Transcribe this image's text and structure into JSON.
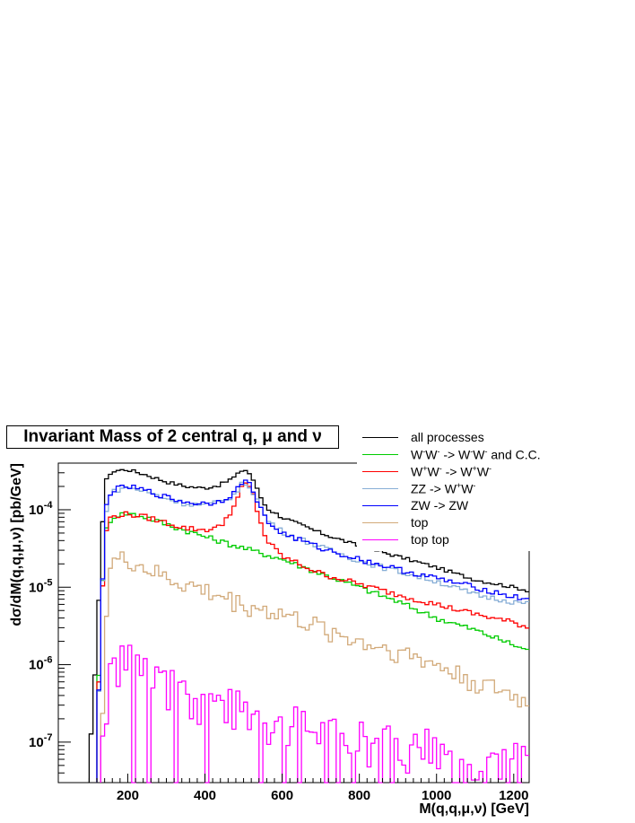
{
  "chart_data": {
    "type": "line",
    "title": "Invariant Mass of 2 central q, μ and ν",
    "xlabel": "M(q,q,μ,ν) [GeV]",
    "ylabel": "dσ/dM(q,q,μ,ν) [pb/GeV]",
    "xlim": [
      20,
      1240
    ],
    "ylim": [
      3e-08,
      0.0004
    ],
    "yscale": "log",
    "x_ticks": [
      200,
      400,
      600,
      800,
      1000,
      1200
    ],
    "x_tick_labels": [
      "200",
      "400",
      "600",
      "800",
      "1000",
      "1200"
    ],
    "y_ticks": [
      1e-07,
      1e-06,
      1e-05,
      0.0001
    ],
    "y_tick_labels": [
      {
        "mantissa": "10",
        "exponent": "-7"
      },
      {
        "mantissa": "10",
        "exponent": "-6"
      },
      {
        "mantissa": "10",
        "exponent": "-5"
      },
      {
        "mantissa": "10",
        "exponent": "-4"
      }
    ],
    "grid": false,
    "legend_position": "top-right",
    "bin_width": 10,
    "series": [
      {
        "name": "all processes",
        "label_html": "all processes",
        "color": "#000000",
        "points": [
          [
            100,
            6e-08
          ],
          [
            110,
            2.5e-07
          ],
          [
            120,
            2e-06
          ],
          [
            130,
            2.5e-05
          ],
          [
            140,
            0.0002
          ],
          [
            150,
            0.00029
          ],
          [
            170,
            0.00032
          ],
          [
            200,
            0.00033
          ],
          [
            250,
            0.00028
          ],
          [
            300,
            0.00023
          ],
          [
            350,
            0.0002
          ],
          [
            400,
            0.00019
          ],
          [
            440,
            0.00021
          ],
          [
            480,
            0.00027
          ],
          [
            500,
            0.00034
          ],
          [
            520,
            0.00028
          ],
          [
            540,
            0.00016
          ],
          [
            560,
            0.000105
          ],
          [
            600,
            8e-05
          ],
          [
            700,
            5e-05
          ],
          [
            800,
            3.4e-05
          ],
          [
            900,
            2.5e-05
          ],
          [
            1000,
            1.8e-05
          ],
          [
            1100,
            1.25e-05
          ],
          [
            1200,
            1e-05
          ],
          [
            1240,
            9e-06
          ]
        ]
      },
      {
        "name": "W-W- -> W-W- and C.C.",
        "label_html": "W<sup>-</sup>W<sup>-</sup> -&gt; W<sup>-</sup>W<sup>-</sup> and C.C.",
        "color": "#00cc00",
        "points": [
          [
            120,
            2e-07
          ],
          [
            130,
            3e-06
          ],
          [
            140,
            4.5e-05
          ],
          [
            150,
            7e-05
          ],
          [
            170,
            8.5e-05
          ],
          [
            200,
            9e-05
          ],
          [
            250,
            8e-05
          ],
          [
            300,
            6.5e-05
          ],
          [
            400,
            4.5e-05
          ],
          [
            500,
            3.2e-05
          ],
          [
            600,
            2.3e-05
          ],
          [
            700,
            1.5e-05
          ],
          [
            800,
            1e-05
          ],
          [
            900,
            6.5e-06
          ],
          [
            1000,
            4e-06
          ],
          [
            1100,
            2.8e-06
          ],
          [
            1200,
            1.8e-06
          ],
          [
            1240,
            1.5e-06
          ]
        ]
      },
      {
        "name": "W+W- -> W+W-",
        "label_html": "W<sup>+</sup>W<sup>-</sup> -&gt; W<sup>+</sup>W<sup>-</sup>",
        "color": "#ff0000",
        "points": [
          [
            120,
            1.5e-07
          ],
          [
            130,
            2.5e-06
          ],
          [
            140,
            4e-05
          ],
          [
            150,
            7.5e-05
          ],
          [
            170,
            8.5e-05
          ],
          [
            200,
            8.8e-05
          ],
          [
            250,
            8e-05
          ],
          [
            300,
            6.8e-05
          ],
          [
            350,
            5.8e-05
          ],
          [
            400,
            5.5e-05
          ],
          [
            440,
            6e-05
          ],
          [
            480,
            0.00012
          ],
          [
            500,
            0.00022
          ],
          [
            520,
            0.00019
          ],
          [
            540,
            8e-05
          ],
          [
            560,
            4e-05
          ],
          [
            600,
            2.5e-05
          ],
          [
            700,
            1.5e-05
          ],
          [
            800,
            1.1e-05
          ],
          [
            900,
            8e-06
          ],
          [
            1000,
            6e-06
          ],
          [
            1100,
            4.5e-06
          ],
          [
            1200,
            3.5e-06
          ],
          [
            1240,
            3e-06
          ]
        ]
      },
      {
        "name": "ZZ -> W+W-",
        "label_html": "ZZ -&gt; W<sup>+</sup>W<sup>-</sup>",
        "color": "#87aed6",
        "points": [
          [
            120,
            1e-07
          ],
          [
            130,
            2e-06
          ],
          [
            140,
            7e-05
          ],
          [
            150,
            0.00015
          ],
          [
            170,
            0.00018
          ],
          [
            200,
            0.000195
          ],
          [
            250,
            0.00017
          ],
          [
            300,
            0.00014
          ],
          [
            350,
            0.00012
          ],
          [
            400,
            0.000115
          ],
          [
            440,
            0.000125
          ],
          [
            480,
            0.00016
          ],
          [
            500,
            0.00023
          ],
          [
            520,
            0.00019
          ],
          [
            540,
            0.00012
          ],
          [
            560,
            7.5e-05
          ],
          [
            600,
            5.2e-05
          ],
          [
            700,
            3.3e-05
          ],
          [
            800,
            2.2e-05
          ],
          [
            900,
            1.6e-05
          ],
          [
            1000,
            1.2e-05
          ],
          [
            1100,
            8e-06
          ],
          [
            1200,
            6.5e-06
          ],
          [
            1240,
            6e-06
          ]
        ]
      },
      {
        "name": "ZW -> ZW",
        "label_html": "ZW -&gt; ZW",
        "color": "#0000ff",
        "points": [
          [
            120,
            1e-07
          ],
          [
            130,
            2e-06
          ],
          [
            140,
            8e-05
          ],
          [
            150,
            0.00016
          ],
          [
            170,
            0.000185
          ],
          [
            200,
            0.0002
          ],
          [
            250,
            0.000175
          ],
          [
            300,
            0.000145
          ],
          [
            350,
            0.000125
          ],
          [
            400,
            0.00012
          ],
          [
            440,
            0.00013
          ],
          [
            480,
            0.00017
          ],
          [
            500,
            0.00025
          ],
          [
            520,
            0.0002
          ],
          [
            540,
            0.00012
          ],
          [
            560,
            7e-05
          ],
          [
            600,
            5e-05
          ],
          [
            700,
            3.2e-05
          ],
          [
            800,
            2.3e-05
          ],
          [
            900,
            1.7e-05
          ],
          [
            1000,
            1.3e-05
          ],
          [
            1100,
            1e-05
          ],
          [
            1200,
            7.5e-06
          ],
          [
            1240,
            7e-06
          ]
        ]
      },
      {
        "name": "top",
        "label_html": "top",
        "color": "#d2aa7a",
        "points": [
          [
            130,
            1e-07
          ],
          [
            140,
            1e-06
          ],
          [
            150,
            1.8e-05
          ],
          [
            170,
            2.2e-05
          ],
          [
            200,
            2.3e-05
          ],
          [
            250,
            1.7e-05
          ],
          [
            300,
            1.3e-05
          ],
          [
            400,
            9e-06
          ],
          [
            500,
            6e-06
          ],
          [
            600,
            4.5e-06
          ],
          [
            700,
            3e-06
          ],
          [
            800,
            2e-06
          ],
          [
            900,
            1.5e-06
          ],
          [
            1000,
            1e-06
          ],
          [
            1100,
            6e-07
          ],
          [
            1200,
            4e-07
          ],
          [
            1240,
            3e-07
          ]
        ]
      },
      {
        "name": "top top",
        "label_html": "top top",
        "color": "#ff00ff",
        "points": [
          [
            130,
            1e-07
          ],
          [
            150,
            6e-07
          ],
          [
            180,
            1.4e-06
          ],
          [
            200,
            1.6e-06
          ],
          [
            230,
            1e-06
          ],
          [
            280,
            6e-07
          ],
          [
            330,
            5e-07
          ],
          [
            400,
            4e-07
          ],
          [
            500,
            3e-07
          ],
          [
            600,
            2e-07
          ],
          [
            700,
            1.5e-07
          ],
          [
            800,
            1.2e-07
          ],
          [
            900,
            1e-07
          ],
          [
            1000,
            9e-08
          ],
          [
            1100,
            8e-08
          ],
          [
            1200,
            7e-08
          ],
          [
            1240,
            7e-08
          ]
        ]
      }
    ]
  }
}
